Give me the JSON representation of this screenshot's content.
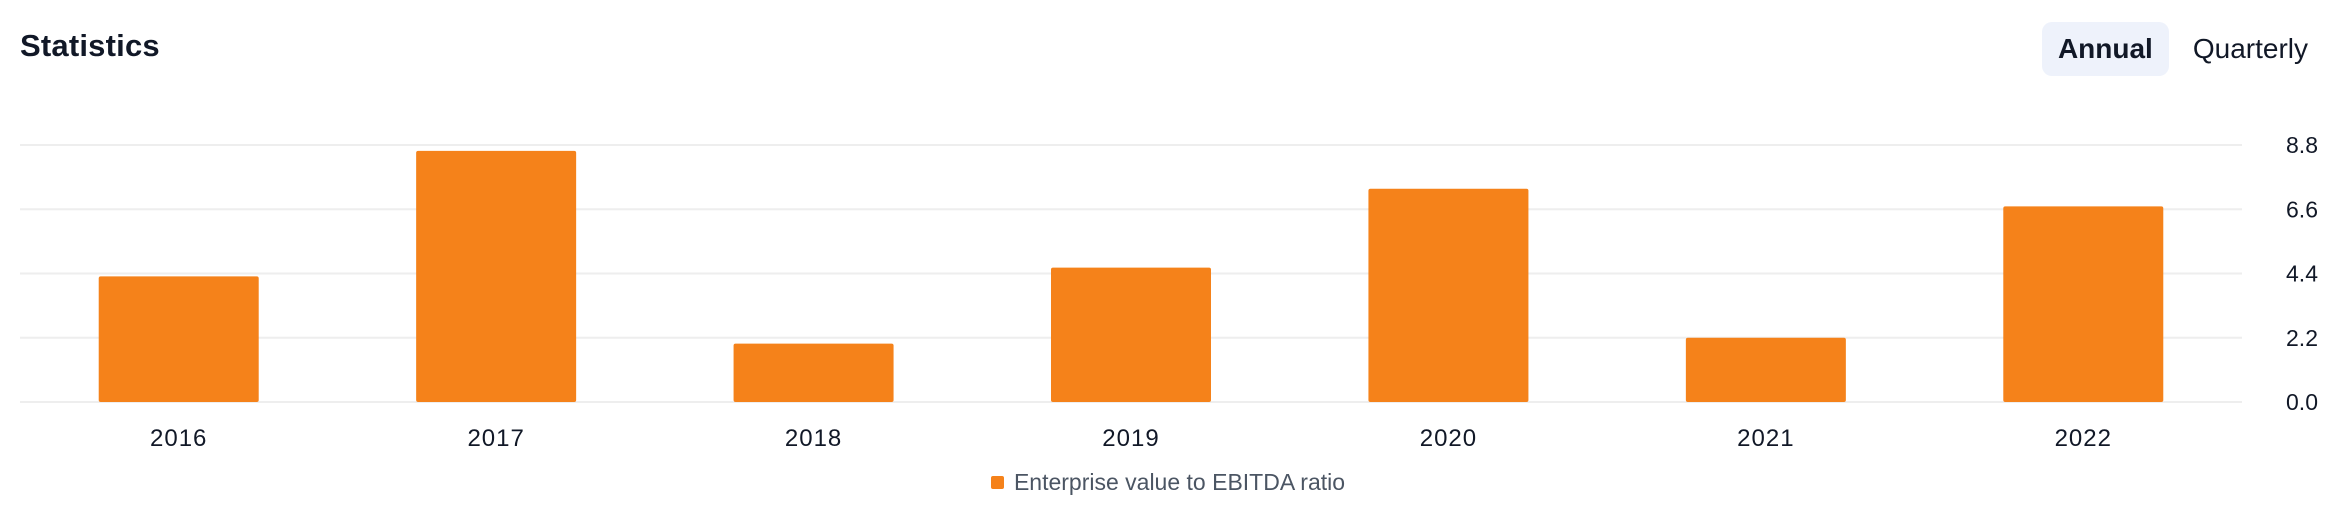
{
  "header": {
    "title": "Statistics"
  },
  "toggle": {
    "options": [
      "Annual",
      "Quarterly"
    ],
    "selected": "Annual"
  },
  "colors": {
    "bar": "#f5821a",
    "grid": "#eeeeee",
    "axis_text": "#111827"
  },
  "chart_data": {
    "type": "bar",
    "categories": [
      "2016",
      "2017",
      "2018",
      "2019",
      "2020",
      "2021",
      "2022"
    ],
    "series": [
      {
        "name": "Enterprise value to EBITDA ratio",
        "values": [
          4.3,
          8.6,
          2.0,
          4.6,
          7.3,
          2.2,
          6.7
        ]
      }
    ],
    "ylim": [
      0,
      8.8
    ],
    "yticks": [
      "0.0",
      "2.2",
      "4.4",
      "6.6",
      "8.8"
    ],
    "y_axis_position": "right",
    "grid": true,
    "legend_position": "bottom-center"
  }
}
